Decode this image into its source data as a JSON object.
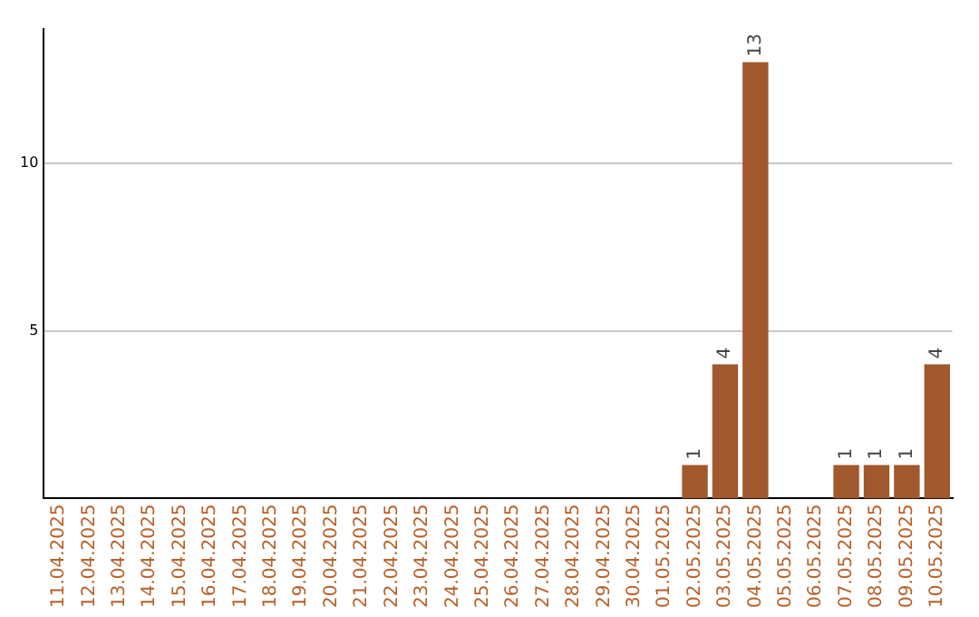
{
  "chart_data": {
    "type": "bar",
    "categories": [
      "11.04.2025",
      "12.04.2025",
      "13.04.2025",
      "14.04.2025",
      "15.04.2025",
      "16.04.2025",
      "17.04.2025",
      "18.04.2025",
      "19.04.2025",
      "20.04.2025",
      "21.04.2025",
      "22.04.2025",
      "23.04.2025",
      "24.04.2025",
      "25.04.2025",
      "26.04.2025",
      "27.04.2025",
      "28.04.2025",
      "29.04.2025",
      "30.04.2025",
      "01.05.2025",
      "02.05.2025",
      "03.05.2025",
      "04.05.2025",
      "05.05.2025",
      "06.05.2025",
      "07.05.2025",
      "08.05.2025",
      "09.05.2025",
      "10.05.2025"
    ],
    "values": [
      0,
      0,
      0,
      0,
      0,
      0,
      0,
      0,
      0,
      0,
      0,
      0,
      0,
      0,
      0,
      0,
      0,
      0,
      0,
      0,
      0,
      1,
      4,
      13,
      0,
      0,
      1,
      1,
      1,
      4
    ],
    "value_labels": [
      null,
      null,
      null,
      null,
      null,
      null,
      null,
      null,
      null,
      null,
      null,
      null,
      null,
      null,
      null,
      null,
      null,
      null,
      null,
      null,
      null,
      "1",
      "4",
      "13",
      null,
      null,
      "1",
      "1",
      "1",
      "4"
    ],
    "color": "#a0582c",
    "ylim": [
      0,
      14
    ],
    "yticks": [
      5,
      10
    ],
    "grid": "y",
    "legend": false
  }
}
